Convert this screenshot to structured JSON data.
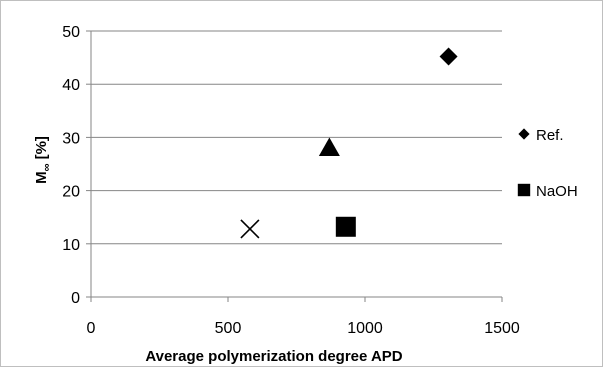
{
  "chart_data": {
    "type": "scatter",
    "title": "",
    "xlabel": "Average polymerization degree APD",
    "ylabel_main": "M",
    "ylabel_sub": "∞",
    "ylabel_unit": " [%]",
    "xlim": [
      0,
      1500
    ],
    "ylim": [
      0,
      50
    ],
    "xticks": [
      "0",
      "500",
      "1000",
      "1500"
    ],
    "yticks": [
      "0",
      "10",
      "20",
      "30",
      "40",
      "50"
    ],
    "grid": "horizontal",
    "legend_position": "right",
    "series": [
      {
        "name": "Ref.",
        "marker": "diamond",
        "color": "#000000",
        "x": [
          1305
        ],
        "y": [
          45.2
        ]
      },
      {
        "name": "NaOH",
        "marker": "square",
        "color": "#000000",
        "x": [
          930
        ],
        "y": [
          13.2
        ]
      },
      {
        "name": "",
        "marker": "triangle",
        "color": "#000000",
        "x": [
          870
        ],
        "y": [
          28.1
        ]
      },
      {
        "name": "",
        "marker": "cross",
        "color": "#000000",
        "x": [
          580
        ],
        "y": [
          12.8
        ]
      }
    ]
  }
}
